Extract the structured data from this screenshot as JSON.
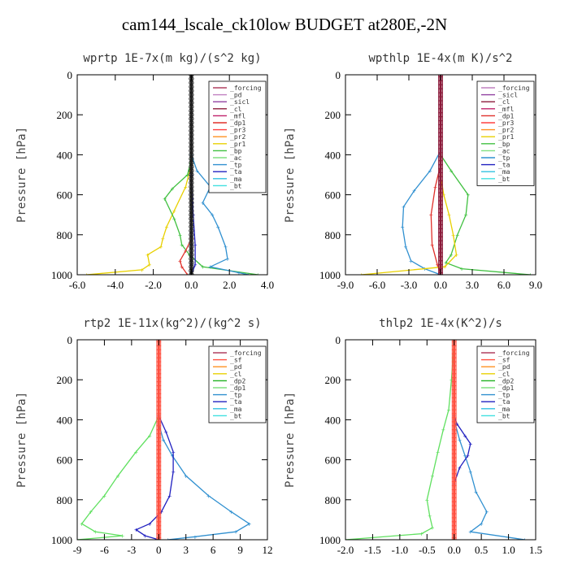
{
  "title": "cam144_lscale_ck10low  BUDGET at280E,-2N",
  "colors": {
    "forcing": "#b04060",
    "pd": "#c080c0",
    "sicl": "#9040a0",
    "cl": "#8b1a3a",
    "mfl": "#c0206a",
    "dp1": "#e0302a",
    "pr3": "#ff4040",
    "pr2": "#ff9020",
    "pr1": "#e8d000",
    "bp": "#40c040",
    "ac": "#80e080",
    "tp": "#3090d0",
    "ta": "#2020c0",
    "ma": "#30c0e0",
    "bt": "#40e0e0",
    "sf": "#ff5040",
    "dp2": "#20b020",
    "lightgreen": "#60e060"
  },
  "chart_data": [
    {
      "type": "line",
      "title": "wprtp   1E-7x(m kg)/(s^2 kg)",
      "ylabel": "Pressure [hPa]",
      "xlim": [
        -6,
        4
      ],
      "ylim": [
        1000,
        0
      ],
      "xticks": [
        "-6.0",
        "-4.0",
        "-2.0",
        "0.0",
        "2.0",
        "4.0"
      ],
      "xtick_values": [
        -6,
        -4,
        -2,
        0,
        2,
        4
      ],
      "yticks": [
        "0",
        "200",
        "400",
        "600",
        "800",
        "1000"
      ],
      "ytick_values": [
        0,
        200,
        400,
        600,
        800,
        1000
      ],
      "legend": [
        "_forcing",
        "_pd",
        "_sicl",
        "_cl",
        "_mfl",
        "_dp1",
        "_pr3",
        "_pr2",
        "_pr1",
        "_bp",
        "_ac",
        "_tp",
        "_ta",
        "_ma",
        "_bt"
      ],
      "legend_colors": [
        "#b04060",
        "#c080c0",
        "#9040a0",
        "#8b1a3a",
        "#c0206a",
        "#e0302a",
        "#ff4040",
        "#ff9020",
        "#e8d000",
        "#40c040",
        "#80e080",
        "#3090d0",
        "#2020c0",
        "#30c0e0",
        "#40e0e0"
      ],
      "legend_corner": "top-right",
      "series": [
        {
          "key": "pr1",
          "color": "#e8d000",
          "points": [
            [
              0,
              0
            ],
            [
              0,
              450
            ],
            [
              -0.3,
              560
            ],
            [
              -0.9,
              680
            ],
            [
              -1.3,
              760
            ],
            [
              -1.5,
              820
            ],
            [
              -1.6,
              860
            ],
            [
              -2.3,
              900
            ],
            [
              -2.2,
              950
            ],
            [
              -2.6,
              975
            ],
            [
              -5.5,
              1000
            ]
          ]
        },
        {
          "key": "bp",
          "color": "#40c040",
          "points": [
            [
              0,
              0
            ],
            [
              0,
              420
            ],
            [
              -0.2,
              500
            ],
            [
              -1.0,
              570
            ],
            [
              -1.4,
              620
            ],
            [
              -0.9,
              720
            ],
            [
              -0.6,
              800
            ],
            [
              -0.5,
              850
            ],
            [
              -0.1,
              900
            ],
            [
              0.6,
              960
            ],
            [
              3.5,
              1000
            ]
          ]
        },
        {
          "key": "tp",
          "color": "#3090d0",
          "points": [
            [
              0,
              0
            ],
            [
              0,
              400
            ],
            [
              0.3,
              480
            ],
            [
              1.0,
              560
            ],
            [
              0.6,
              640
            ],
            [
              1.1,
              700
            ],
            [
              1.4,
              760
            ],
            [
              1.8,
              860
            ],
            [
              1.9,
              920
            ],
            [
              1.0,
              960
            ],
            [
              2.5,
              990
            ],
            [
              3.0,
              1000
            ]
          ]
        },
        {
          "key": "dp1",
          "color": "#e0302a",
          "points": [
            [
              0,
              0
            ],
            [
              0,
              820
            ],
            [
              -0.3,
              880
            ],
            [
              -0.6,
              930
            ],
            [
              -0.5,
              960
            ],
            [
              -0.2,
              1000
            ]
          ]
        },
        {
          "key": "ta",
          "color": "#2020c0",
          "points": [
            [
              0,
              0
            ],
            [
              0,
              500
            ],
            [
              0.1,
              700
            ],
            [
              0.2,
              850
            ],
            [
              0.2,
              950
            ],
            [
              0,
              1000
            ]
          ]
        },
        {
          "key": "forcing",
          "color": "#202020",
          "points": [
            [
              0,
              0
            ],
            [
              0,
              1000
            ]
          ],
          "marker": "circle"
        }
      ]
    },
    {
      "type": "line",
      "title": "wpthlp   1E-4x(m K)/s^2",
      "ylabel": "Pressure [hPa]",
      "xlim": [
        -9,
        9
      ],
      "ylim": [
        1000,
        0
      ],
      "xticks": [
        "-9.0",
        "-6.0",
        "-3.0",
        "0.0",
        "3.0",
        "6.0",
        "9.0"
      ],
      "xtick_values": [
        -9,
        -6,
        -3,
        0,
        3,
        6,
        9
      ],
      "yticks": [
        "0",
        "200",
        "400",
        "600",
        "800",
        "1000"
      ],
      "ytick_values": [
        0,
        200,
        400,
        600,
        800,
        1000
      ],
      "legend": [
        "_forcing",
        "_sicl",
        "_cl",
        "_mfl",
        "_dp1",
        "_pr3",
        "_pr2",
        "_pr1",
        "_bp",
        "_ac",
        "_tp",
        "_ta",
        "_ma",
        "_bt"
      ],
      "legend_colors": [
        "#c080c0",
        "#9040a0",
        "#8b1a3a",
        "#c0206a",
        "#e0302a",
        "#ff4040",
        "#ff9020",
        "#e8d000",
        "#40c040",
        "#80e080",
        "#3090d0",
        "#2020c0",
        "#30c0e0",
        "#40e0e0"
      ],
      "legend_corner": "top-right",
      "series": [
        {
          "key": "tp",
          "color": "#3090d0",
          "points": [
            [
              0,
              0
            ],
            [
              0,
              380
            ],
            [
              -1.0,
              480
            ],
            [
              -2.5,
              580
            ],
            [
              -3.5,
              660
            ],
            [
              -3.6,
              760
            ],
            [
              -3.3,
              860
            ],
            [
              -2.8,
              930
            ],
            [
              -1.5,
              970
            ],
            [
              0,
              1000
            ]
          ]
        },
        {
          "key": "bp",
          "color": "#40c040",
          "points": [
            [
              0,
              0
            ],
            [
              0,
              400
            ],
            [
              1.0,
              480
            ],
            [
              2.6,
              600
            ],
            [
              2.4,
              700
            ],
            [
              1.6,
              800
            ],
            [
              1.0,
              900
            ],
            [
              0.5,
              940
            ],
            [
              2.0,
              970
            ],
            [
              8.5,
              1000
            ]
          ]
        },
        {
          "key": "dp1",
          "color": "#e0302a",
          "points": [
            [
              0,
              0
            ],
            [
              0,
              450
            ],
            [
              -0.5,
              560
            ],
            [
              -0.9,
              700
            ],
            [
              -0.8,
              850
            ],
            [
              -0.3,
              950
            ],
            [
              0,
              1000
            ]
          ]
        },
        {
          "key": "pr1",
          "color": "#e8d000",
          "points": [
            [
              0,
              0
            ],
            [
              0,
              500
            ],
            [
              0.3,
              600
            ],
            [
              0.8,
              700
            ],
            [
              1.2,
              800
            ],
            [
              1.5,
              900
            ],
            [
              0.4,
              960
            ],
            [
              -7.5,
              1000
            ]
          ]
        },
        {
          "key": "cl",
          "color": "#8b1a3a",
          "points": [
            [
              0,
              0
            ],
            [
              0,
              1000
            ]
          ],
          "marker": "square"
        }
      ]
    },
    {
      "type": "line",
      "title": "rtp2   1E-11x(kg^2)/(kg^2 s)",
      "ylabel": "Pressure [hPa]",
      "xlim": [
        -9,
        12
      ],
      "ylim": [
        1000,
        0
      ],
      "xticks": [
        "-9",
        "-6",
        "-3",
        "0",
        "3",
        "6",
        "9",
        "12"
      ],
      "xtick_values": [
        -9,
        -6,
        -3,
        0,
        3,
        6,
        9,
        12
      ],
      "yticks": [
        "0",
        "200",
        "400",
        "600",
        "800",
        "1000"
      ],
      "ytick_values": [
        0,
        200,
        400,
        600,
        800,
        1000
      ],
      "legend": [
        "_forcing",
        "_sf",
        "_pd",
        "_cl",
        "_dp2",
        "_dp1",
        "_tp",
        "_ta",
        "_ma",
        "_bt"
      ],
      "legend_colors": [
        "#b04060",
        "#ff5040",
        "#ff9020",
        "#e8d000",
        "#20b020",
        "#80e080",
        "#3090d0",
        "#2020c0",
        "#30c0e0",
        "#40e0e0"
      ],
      "legend_corner": "top-right",
      "series": [
        {
          "key": "dp1",
          "color": "#60e060",
          "points": [
            [
              0,
              0
            ],
            [
              0,
              380
            ],
            [
              -1.0,
              480
            ],
            [
              -2.5,
              560
            ],
            [
              -4.5,
              680
            ],
            [
              -6.0,
              780
            ],
            [
              -7.5,
              860
            ],
            [
              -8.5,
              920
            ],
            [
              -7.0,
              960
            ],
            [
              -4.0,
              980
            ],
            [
              -9.0,
              1000
            ]
          ]
        },
        {
          "key": "tp",
          "color": "#3090d0",
          "points": [
            [
              0,
              0
            ],
            [
              0,
              420
            ],
            [
              0.5,
              500
            ],
            [
              1.5,
              580
            ],
            [
              3.0,
              680
            ],
            [
              5.5,
              780
            ],
            [
              8.0,
              860
            ],
            [
              10.0,
              920
            ],
            [
              8.5,
              960
            ],
            [
              4.0,
              985
            ],
            [
              1.0,
              1000
            ]
          ]
        },
        {
          "key": "ta",
          "color": "#2020c0",
          "points": [
            [
              0,
              0
            ],
            [
              0,
              380
            ],
            [
              0.8,
              460
            ],
            [
              1.6,
              560
            ],
            [
              1.6,
              660
            ],
            [
              1.2,
              780
            ],
            [
              0.3,
              860
            ],
            [
              -1.0,
              920
            ],
            [
              -2.5,
              950
            ],
            [
              -1.5,
              980
            ],
            [
              0,
              1000
            ]
          ]
        },
        {
          "key": "sf",
          "color": "#ff5040",
          "points": [
            [
              0,
              0
            ],
            [
              0,
              1000
            ]
          ],
          "marker": "square"
        }
      ]
    },
    {
      "type": "line",
      "title": "thlp2   1E-4x(K^2)/s",
      "ylabel": "Pressure [hPa]",
      "xlim": [
        -2,
        1.5
      ],
      "ylim": [
        1000,
        0
      ],
      "xticks": [
        "-2.0",
        "-1.5",
        "-1.0",
        "-0.5",
        "0.0",
        "0.5",
        "1.0",
        "1.5"
      ],
      "xtick_values": [
        -2,
        -1.5,
        -1,
        -0.5,
        0,
        0.5,
        1,
        1.5
      ],
      "yticks": [
        "0",
        "200",
        "400",
        "600",
        "800",
        "1000"
      ],
      "ytick_values": [
        0,
        200,
        400,
        600,
        800,
        1000
      ],
      "legend": [
        "_forcing",
        "_sf",
        "_pd",
        "_cl",
        "_dp2",
        "_dp1",
        "_tp",
        "_ta",
        "_ma",
        "_bt"
      ],
      "legend_colors": [
        "#b04060",
        "#ff5040",
        "#ff9020",
        "#e8d000",
        "#20b020",
        "#80e080",
        "#3090d0",
        "#2020c0",
        "#30c0e0",
        "#40e0e0"
      ],
      "legend_corner": "top-right",
      "series": [
        {
          "key": "dp1",
          "color": "#60e060",
          "points": [
            [
              0,
              0
            ],
            [
              -0.05,
              200
            ],
            [
              -0.1,
              350
            ],
            [
              -0.2,
              450
            ],
            [
              -0.3,
              560
            ],
            [
              -0.4,
              680
            ],
            [
              -0.5,
              800
            ],
            [
              -0.45,
              880
            ],
            [
              -0.4,
              940
            ],
            [
              -0.6,
              970
            ],
            [
              -2.0,
              1000
            ]
          ]
        },
        {
          "key": "tp",
          "color": "#3090d0",
          "points": [
            [
              0,
              0
            ],
            [
              0,
              400
            ],
            [
              0.1,
              500
            ],
            [
              0.2,
              580
            ],
            [
              0.3,
              660
            ],
            [
              0.4,
              760
            ],
            [
              0.6,
              860
            ],
            [
              0.5,
              920
            ],
            [
              0.3,
              960
            ],
            [
              1.3,
              1000
            ]
          ]
        },
        {
          "key": "ta",
          "color": "#2020c0",
          "points": [
            [
              0,
              0
            ],
            [
              0,
              380
            ],
            [
              0.05,
              420
            ],
            [
              0.2,
              480
            ],
            [
              0.3,
              520
            ],
            [
              0.25,
              580
            ],
            [
              0.1,
              640
            ],
            [
              0.0,
              720
            ],
            [
              0,
              1000
            ]
          ]
        },
        {
          "key": "sf",
          "color": "#ff5040",
          "points": [
            [
              0,
              0
            ],
            [
              0,
              1000
            ]
          ],
          "marker": "square"
        }
      ]
    }
  ]
}
